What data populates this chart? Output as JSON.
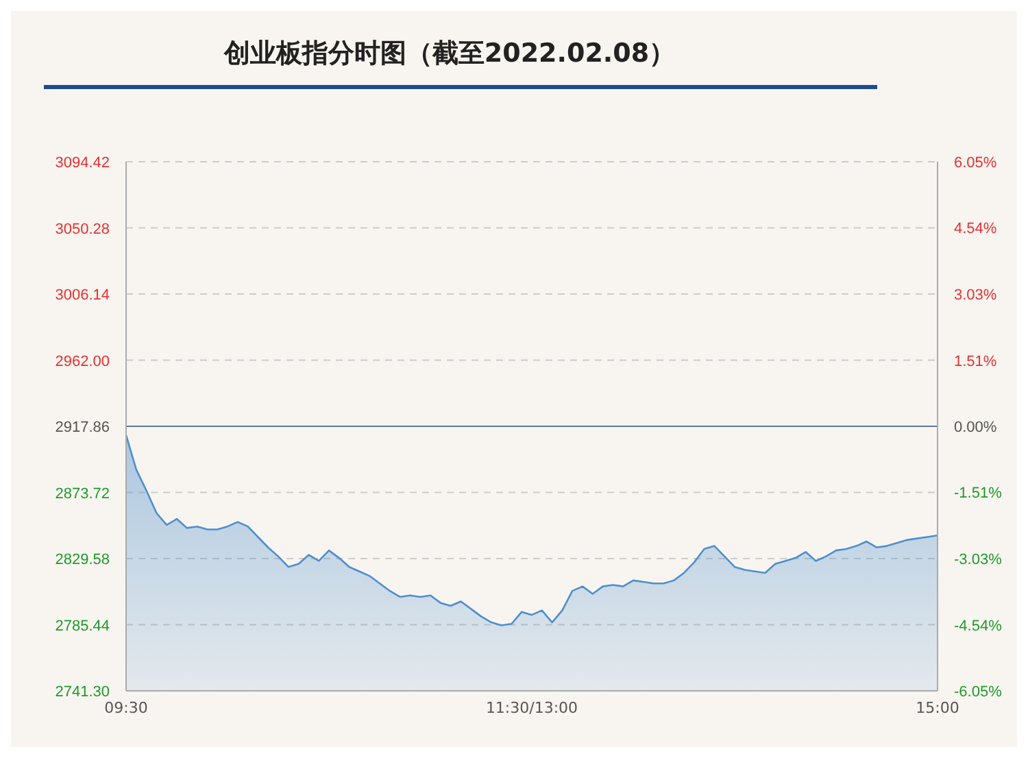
{
  "chart_data": {
    "type": "area",
    "title": "创业板指分时图（截至2022.02.08）",
    "categories": [
      "09:30",
      null,
      null,
      null,
      null,
      null,
      null,
      null,
      null,
      null,
      null,
      null,
      null,
      null,
      null,
      null,
      null,
      null,
      null,
      null,
      null,
      null,
      null,
      null,
      null,
      null,
      null,
      null,
      null,
      null,
      null,
      null,
      null,
      null,
      null,
      null,
      null,
      null,
      null,
      null,
      "11:30/13:00",
      null,
      null,
      null,
      null,
      null,
      null,
      null,
      null,
      null,
      null,
      null,
      null,
      null,
      null,
      null,
      null,
      null,
      null,
      null,
      null,
      null,
      null,
      null,
      null,
      null,
      null,
      null,
      null,
      null,
      null,
      null,
      null,
      null,
      null,
      null,
      null,
      null,
      null,
      null,
      "15:00"
    ],
    "series": [
      {
        "color": "#4f8fcb",
        "values": [
          2912,
          2889,
          2875,
          2860,
          2852,
          2856,
          2850,
          2851,
          2849,
          2849,
          2851,
          2854,
          2851,
          2844,
          2837,
          2831,
          2824,
          2826,
          2832,
          2828,
          2835,
          2830,
          2824,
          2821,
          2818,
          2813,
          2808,
          2804,
          2805,
          2804,
          2805,
          2800,
          2798,
          2801,
          2796,
          2791,
          2787,
          2785,
          2786,
          2794,
          2792,
          2795,
          2787,
          2795,
          2808,
          2811,
          2806,
          2811,
          2812,
          2811,
          2815,
          2814,
          2813,
          2813,
          2815,
          2820,
          2827,
          2836,
          2838,
          2831,
          2824,
          2822,
          2821,
          2820,
          2826,
          2828,
          2830,
          2834,
          2828,
          2831,
          2835,
          2836,
          2838,
          2841,
          2837,
          2838,
          2840,
          2842,
          2843,
          2844,
          2845
        ]
      }
    ],
    "ylim": [
      2741.3,
      3094.42
    ],
    "yticks": [
      {
        "value": 2741.3,
        "label": "2741.30"
      },
      {
        "value": 2785.44,
        "label": "2785.44"
      },
      {
        "value": 2829.58,
        "label": "2829.58"
      },
      {
        "value": 2873.72,
        "label": "2873.72"
      },
      {
        "value": 2917.86,
        "label": "2917.86"
      },
      {
        "value": 2962,
        "label": "2962.00"
      },
      {
        "value": 3006.14,
        "label": "3006.14"
      },
      {
        "value": 3050.28,
        "label": "3050.28"
      },
      {
        "value": 3094.42,
        "label": "3094.42"
      }
    ],
    "y2lim": [
      -6.05,
      6.05
    ],
    "y2ticks": [
      {
        "value": -6.05,
        "label": "-6.05%"
      },
      {
        "value": -4.54,
        "label": "-4.54%"
      },
      {
        "value": -3.03,
        "label": "-3.03%"
      },
      {
        "value": -1.51,
        "label": "-1.51%"
      },
      {
        "value": 0,
        "label": "0.00%"
      },
      {
        "value": 1.51,
        "label": "1.51%"
      },
      {
        "value": 3.03,
        "label": "3.03%"
      },
      {
        "value": 4.54,
        "label": "4.54%"
      },
      {
        "value": 6.05,
        "label": "6.05%"
      }
    ],
    "ref_lines": [
      {
        "axis": "y",
        "value": 2917.86,
        "color": "#5a7896"
      }
    ],
    "grid": "y",
    "marker": "none",
    "line_style": "solid"
  }
}
